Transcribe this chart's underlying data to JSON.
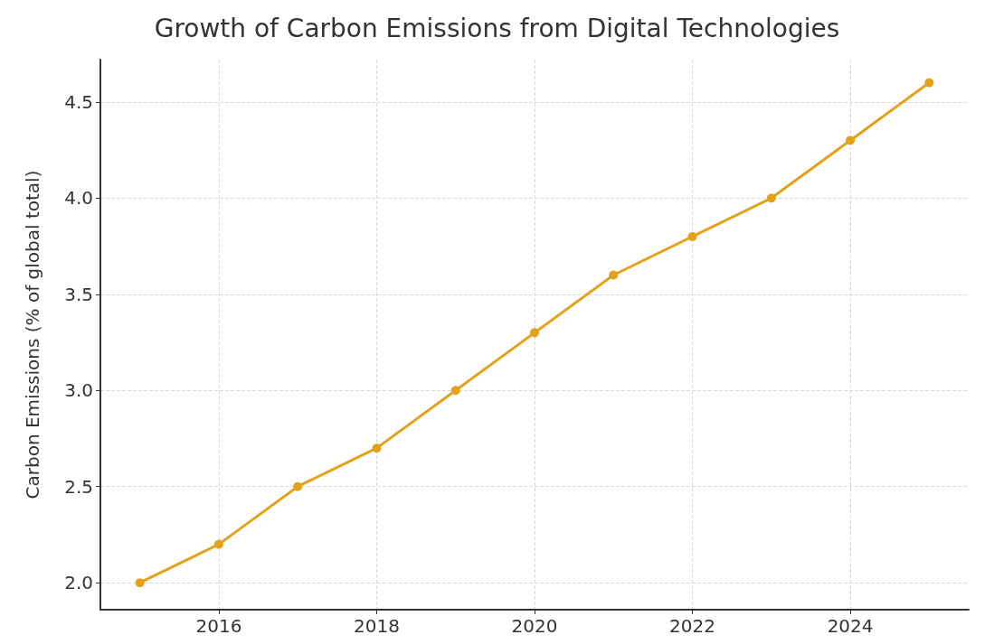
{
  "chart_data": {
    "type": "line",
    "title": "Growth of Carbon Emissions from Digital Technologies",
    "ylabel": "Carbon Emissions (% of global total)",
    "x": [
      2015,
      2016,
      2017,
      2018,
      2019,
      2020,
      2021,
      2022,
      2023,
      2024,
      2025
    ],
    "series": [
      {
        "color": "#e3a21a",
        "values": [
          2.0,
          2.2,
          2.5,
          2.7,
          3.0,
          3.3,
          3.6,
          3.8,
          4.0,
          4.3,
          4.6
        ]
      }
    ],
    "xlim": [
      2014.5,
      2025.5
    ],
    "xticks": [
      2016,
      2018,
      2020,
      2022,
      2024
    ],
    "ylim": [
      1.86,
      4.72
    ],
    "yticks": [
      {
        "value": 2,
        "label": "2.0"
      },
      {
        "value": 2.5,
        "label": "2.5"
      },
      {
        "value": 3,
        "label": "3.0"
      },
      {
        "value": 3.5,
        "label": "3.5"
      },
      {
        "value": 4,
        "label": "4.0"
      },
      {
        "value": 4.5,
        "label": "4.5"
      }
    ],
    "grid": true,
    "marker": "circle",
    "line_style": "solid"
  }
}
